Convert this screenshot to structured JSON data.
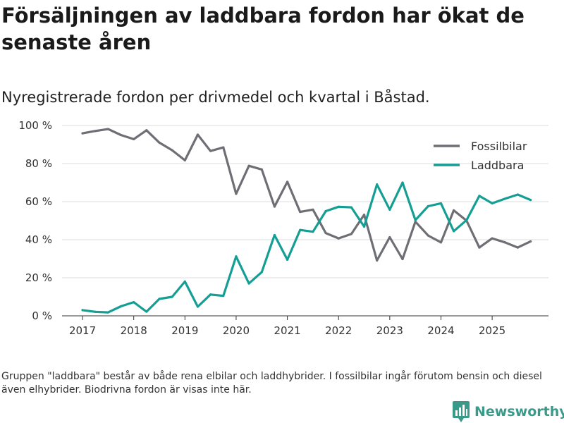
{
  "title": "Försäljningen av laddbara fordon har ökat de senaste åren",
  "subtitle": "Nyregistrerade fordon per drivmedel och kvartal i Båstad.",
  "footnote": "Gruppen \"laddbara\" består av både rena elbilar och laddhybrider. I fossilbilar ingår förutom bensin och diesel även elhybrider. Biodrivna fordon är visas inte här.",
  "brand": {
    "name": "Newsworthy",
    "icon": "bar-chart-logo-icon",
    "color": "#3a9a8a"
  },
  "chart_data": {
    "type": "line",
    "x_ticks": [
      "2017",
      "2018",
      "2019",
      "2020",
      "2021",
      "2022",
      "2023",
      "2024",
      "2025"
    ],
    "y_ticks": [
      "0 %",
      "20 %",
      "40 %",
      "60 %",
      "80 %",
      "100 %"
    ],
    "ylim": [
      0,
      100
    ],
    "xlim": [
      2016.6,
      2026.1
    ],
    "x": [
      2017.0,
      2017.25,
      2017.5,
      2017.75,
      2018.0,
      2018.25,
      2018.5,
      2018.75,
      2019.0,
      2019.25,
      2019.5,
      2019.75,
      2020.0,
      2020.25,
      2020.5,
      2020.75,
      2021.0,
      2021.25,
      2021.5,
      2021.75,
      2022.0,
      2022.25,
      2022.5,
      2022.75,
      2023.0,
      2023.25,
      2023.5,
      2023.75,
      2024.0,
      2024.25,
      2024.5,
      2024.75,
      2025.0,
      2025.25,
      2025.5,
      2025.75
    ],
    "legend_position": "top-right",
    "series": [
      {
        "name": "Fossilbilar",
        "color": "#6e6e75",
        "values": [
          95.9,
          97.1,
          98.1,
          95.0,
          92.8,
          97.5,
          91.0,
          87.0,
          81.7,
          95.2,
          86.6,
          88.5,
          64.1,
          78.8,
          76.9,
          57.4,
          70.4,
          54.6,
          55.8,
          43.5,
          40.7,
          43.0,
          53.1,
          29.1,
          41.3,
          29.8,
          49.5,
          42.2,
          38.6,
          55.4,
          50.0,
          35.9,
          40.7,
          38.6,
          35.9,
          39.1
        ]
      },
      {
        "name": "Laddbara",
        "color": "#159e94",
        "values": [
          3.0,
          2.1,
          1.8,
          5.0,
          7.2,
          2.2,
          8.9,
          10.0,
          18.0,
          4.8,
          11.2,
          10.5,
          31.2,
          17.0,
          23.0,
          42.4,
          29.5,
          45.1,
          44.2,
          55.0,
          57.3,
          57.0,
          46.9,
          69.0,
          55.8,
          70.0,
          50.3,
          57.6,
          59.1,
          44.5,
          50.3,
          63.0,
          59.1,
          61.5,
          63.7,
          60.9
        ]
      }
    ]
  }
}
